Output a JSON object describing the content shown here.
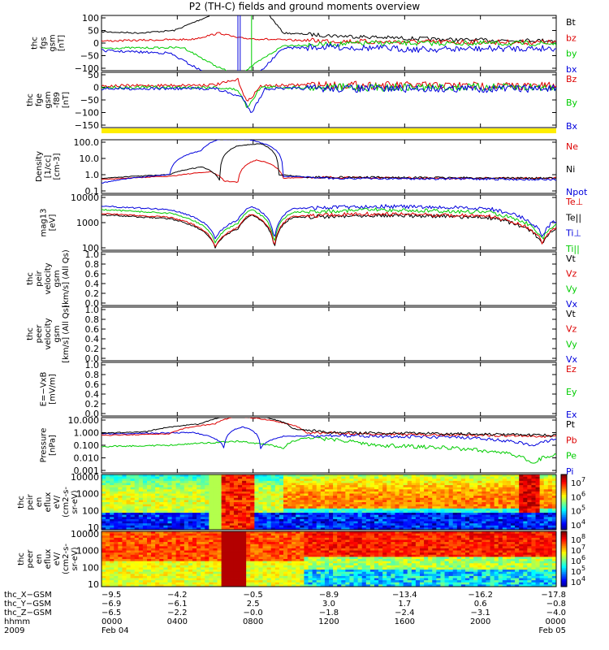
{
  "title": "P2 (TH-C) fields and ground moments overview",
  "chart_data": [
    {
      "type": "line",
      "ylabel": [
        "thc",
        "fgs",
        "gsm",
        "[nT]"
      ],
      "yticks": [
        "100",
        "50",
        "0",
        "−50",
        "−100"
      ],
      "ylim": [
        -100,
        100
      ],
      "legend": [
        {
          "label": "Bt",
          "color": "#000000"
        },
        {
          "label": "bz",
          "color": "#dd0000"
        },
        {
          "label": "by",
          "color": "#00cc00"
        },
        {
          "label": "bx",
          "color": "#0000dd"
        }
      ]
    },
    {
      "type": "line",
      "ylabel": [
        "thc",
        "fge",
        "gsm",
        "-f89",
        "[nT]"
      ],
      "yticks": [
        "50",
        "0",
        "−50",
        "−100",
        "−150"
      ],
      "ylim": [
        -175,
        75
      ],
      "legend": [
        {
          "label": "Bz",
          "color": "#dd0000"
        },
        {
          "label": "By",
          "color": "#00cc00"
        },
        {
          "label": "Bx",
          "color": "#0000dd"
        }
      ]
    },
    {
      "type": "line",
      "ylabel": [
        "Density",
        "[1/cc]",
        "[cm-3]"
      ],
      "yticks": [
        "100.0",
        "10.0",
        "1.0",
        "0.1"
      ],
      "yscale": "log",
      "legend": [
        {
          "label": "Ne",
          "color": "#dd0000"
        },
        {
          "label": "Ni",
          "color": "#000000"
        },
        {
          "label": "Npot",
          "color": "#0000dd"
        }
      ]
    },
    {
      "type": "line",
      "ylabel": [
        "mag13",
        "[eV]"
      ],
      "yticks": [
        "10000",
        "1000",
        "100"
      ],
      "yscale": "log",
      "legend": [
        {
          "label": "Te⊥",
          "color": "#dd0000"
        },
        {
          "label": "Te||",
          "color": "#000000"
        },
        {
          "label": "Ti⊥",
          "color": "#0000dd"
        },
        {
          "label": "Ti||",
          "color": "#00cc00"
        }
      ]
    },
    {
      "type": "line",
      "ylabel": [
        "thc",
        "peir",
        "velocity",
        "gsm",
        "[km/s] (All Qs)"
      ],
      "yticks": [
        "1.0",
        "0.8",
        "0.6",
        "0.4",
        "0.2",
        "0.0"
      ],
      "ylim": [
        0,
        1
      ],
      "legend": [
        {
          "label": "Vt",
          "color": "#000000"
        },
        {
          "label": "Vz",
          "color": "#dd0000"
        },
        {
          "label": "Vy",
          "color": "#00cc00"
        },
        {
          "label": "Vx",
          "color": "#0000dd"
        }
      ]
    },
    {
      "type": "line",
      "ylabel": [
        "thc",
        "peer",
        "velocity",
        "gsm",
        "[km/s] (All Qs)"
      ],
      "yticks": [
        "1.0",
        "0.8",
        "0.6",
        "0.4",
        "0.2",
        "0.0"
      ],
      "ylim": [
        0,
        1
      ],
      "legend": [
        {
          "label": "Vt",
          "color": "#000000"
        },
        {
          "label": "Vz",
          "color": "#dd0000"
        },
        {
          "label": "Vy",
          "color": "#00cc00"
        },
        {
          "label": "Vx",
          "color": "#0000dd"
        }
      ]
    },
    {
      "type": "line",
      "ylabel": [
        "E=−VxB",
        "[mV/m]"
      ],
      "yticks": [
        "1.0",
        "0.8",
        "0.6",
        "0.4",
        "0.2",
        "0.0"
      ],
      "ylim": [
        0,
        1
      ],
      "legend": [
        {
          "label": "Ez",
          "color": "#dd0000"
        },
        {
          "label": "Ey",
          "color": "#00cc00"
        },
        {
          "label": "Ex",
          "color": "#0000dd"
        }
      ]
    },
    {
      "type": "line",
      "ylabel": [
        "Pressure",
        "[nPa]"
      ],
      "yticks": [
        "10.000",
        "1.000",
        "0.100",
        "0.010",
        "0.001"
      ],
      "yscale": "log",
      "legend": [
        {
          "label": "Pt",
          "color": "#000000"
        },
        {
          "label": "Pb",
          "color": "#dd0000"
        },
        {
          "label": "Pe",
          "color": "#00cc00"
        },
        {
          "label": "Pi",
          "color": "#0000dd"
        }
      ]
    },
    {
      "type": "heatmap",
      "ylabel": [
        "thc",
        "peir",
        "en",
        "eflux",
        "eV/",
        "(cm2-s-",
        "sr-eV)"
      ],
      "yticks": [
        "10000",
        "1000",
        "100",
        "10"
      ],
      "colorbar": [
        "10",
        "10",
        "10",
        "10"
      ],
      "colorbar_exp": [
        "7",
        "6",
        "5",
        "4"
      ]
    },
    {
      "type": "heatmap",
      "ylabel": [
        "thc",
        "peer",
        "en",
        "eflux",
        "eV/",
        "(cm2-s-",
        "sr-eV)"
      ],
      "yticks": [
        "10000",
        "1000",
        "100",
        "10"
      ],
      "colorbar": [
        "10",
        "10",
        "10",
        "10",
        "10"
      ],
      "colorbar_exp": [
        "8",
        "7",
        "6",
        "5",
        "4"
      ]
    }
  ],
  "xaxis": {
    "row_labels": [
      "thc_X−GSM",
      "thc_Y−GSM",
      "thc_Z−GSM",
      "hhmm",
      "2009"
    ],
    "columns": [
      {
        "x": [
          "−9.5",
          "−6.9",
          "−6.5",
          "0000",
          "Feb 04"
        ]
      },
      {
        "x": [
          "−4.2",
          "−6.1",
          "−2.2",
          "0400",
          ""
        ]
      },
      {
        "x": [
          "−0.5",
          "2.5",
          "−0.0",
          "0800",
          ""
        ]
      },
      {
        "x": [
          "−8.9",
          "3.0",
          "−1.8",
          "1200",
          ""
        ]
      },
      {
        "x": [
          "−13.4",
          "1.7",
          "−2.4",
          "1600",
          ""
        ]
      },
      {
        "x": [
          "−16.2",
          "0.6",
          "−3.1",
          "2000",
          ""
        ]
      },
      {
        "x": [
          "−17.8",
          "−0.8",
          "−4.0",
          "0000",
          "Feb 05"
        ]
      }
    ]
  }
}
